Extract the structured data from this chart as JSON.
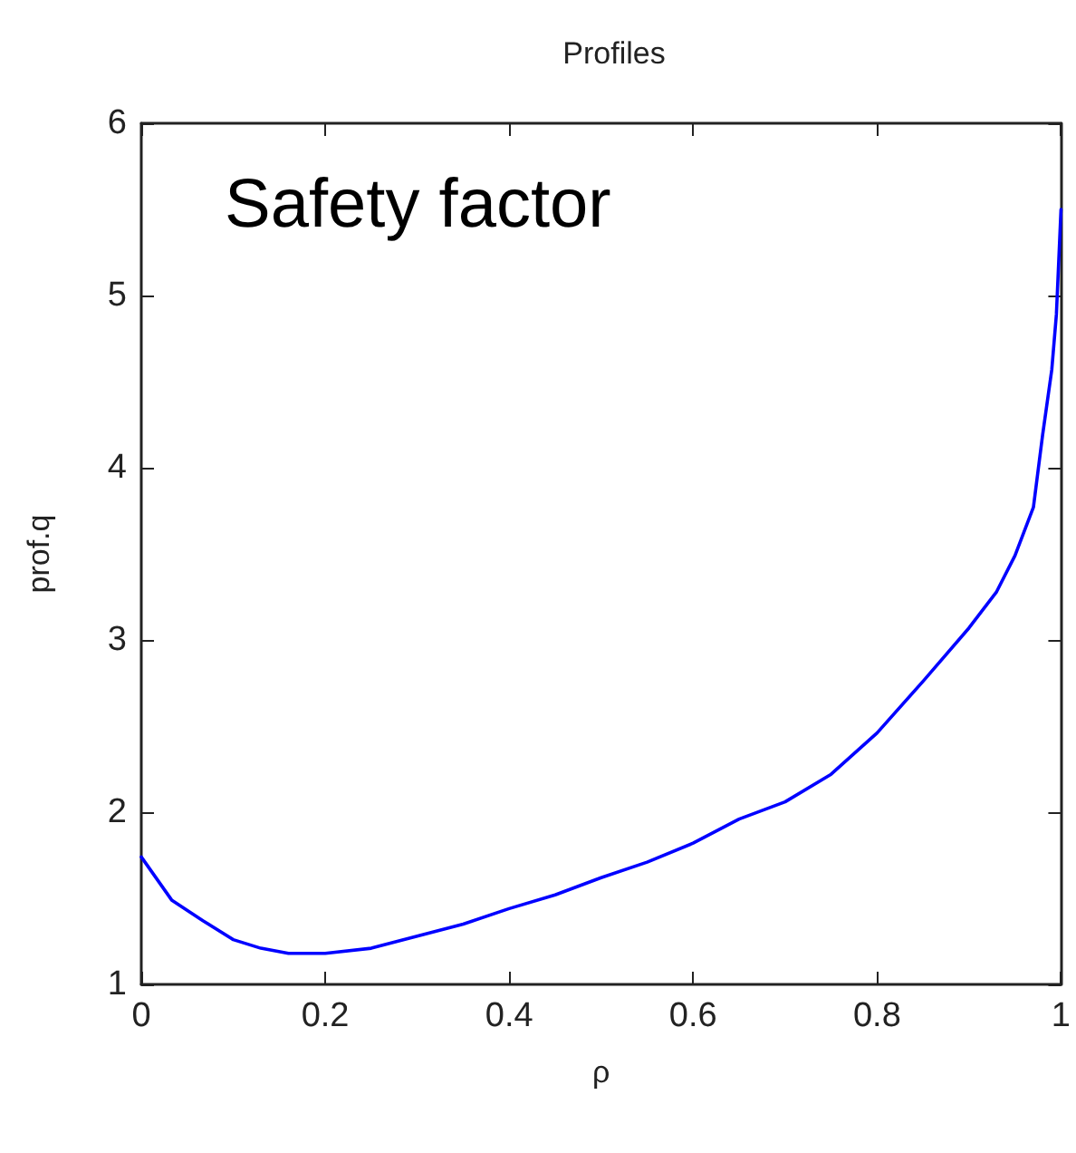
{
  "chart_data": {
    "type": "line",
    "title": "Profiles",
    "xlabel": "ρ",
    "ylabel": "prof.q",
    "annotations": [
      "Safety factor"
    ],
    "x": [
      0,
      0.033,
      0.067,
      0.1,
      0.13,
      0.16,
      0.2,
      0.25,
      0.3,
      0.35,
      0.4,
      0.45,
      0.5,
      0.55,
      0.6,
      0.65,
      0.7,
      0.75,
      0.8,
      0.85,
      0.9,
      0.93,
      0.95,
      0.97,
      0.98,
      0.99,
      0.995,
      1
    ],
    "series": [
      {
        "color": "#0000ff",
        "values": [
          1.74,
          1.49,
          1.37,
          1.26,
          1.21,
          1.18,
          1.18,
          1.21,
          1.28,
          1.35,
          1.44,
          1.52,
          1.62,
          1.71,
          1.82,
          1.96,
          2.06,
          2.22,
          2.46,
          2.76,
          3.07,
          3.28,
          3.49,
          3.77,
          4.19,
          4.57,
          4.89,
          5.5
        ]
      }
    ],
    "xlim": [
      0,
      1
    ],
    "ylim": [
      1,
      6
    ],
    "xticks": [
      0,
      0.2,
      0.4,
      0.6,
      0.8,
      1
    ],
    "yticks": [
      1,
      2,
      3,
      4,
      5,
      6
    ],
    "grid": false,
    "marker": "none",
    "line_style": "solid"
  }
}
